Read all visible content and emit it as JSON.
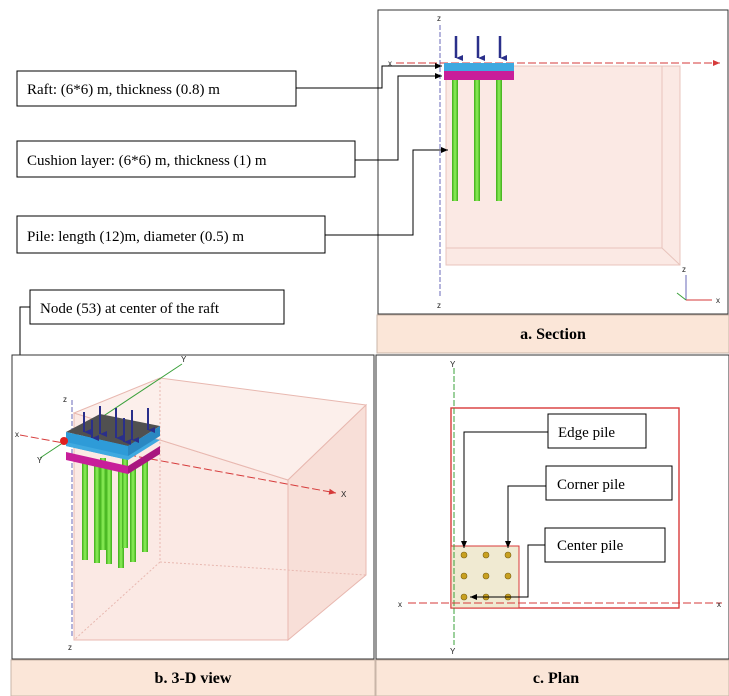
{
  "callouts": {
    "raft": "Raft: (6*6) m, thickness (0.8) m",
    "cushion": "Cushion layer: (6*6) m, thickness (1) m",
    "pile": "Pile: length (12)m, diameter (0.5) m",
    "node": "Node (53) at center of the raft",
    "edge_pile": "Edge pile",
    "corner_pile": "Corner pile",
    "center_pile": "Center pile"
  },
  "captions": {
    "section": "a. Section",
    "view3d": "b. 3-D view",
    "plan": "c. Plan"
  },
  "axes": {
    "x": "x",
    "y": "Y",
    "z": "z",
    "X": "X",
    "Z": "Z"
  },
  "colors": {
    "soil_fill": "#fbe9e4",
    "soil_edge": "#e8b8b0",
    "raft": "#555555",
    "cushion": "#3fa9e0",
    "cushion_bottom": "#c81e9a",
    "pile": "#5bd42a",
    "load_arrow": "#2a2f8a",
    "plan_border": "#d93a3a",
    "pile_dot": "#c8a020",
    "caption_bg": "#fbe6d8",
    "node_dot": "#e02020"
  }
}
